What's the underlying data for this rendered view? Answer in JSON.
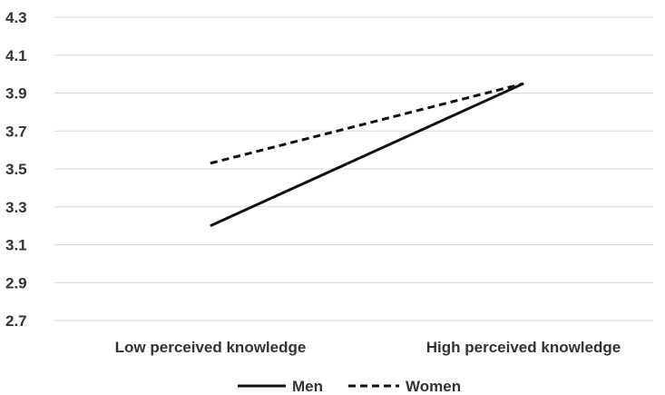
{
  "chart_data": {
    "type": "line",
    "categories": [
      "Low perceived knowledge",
      "High perceived knowledge"
    ],
    "series": [
      {
        "name": "Men",
        "values": [
          3.2,
          3.95
        ],
        "color": "#111111",
        "line_style": "solid"
      },
      {
        "name": "Women",
        "values": [
          3.53,
          3.95
        ],
        "color": "#111111",
        "line_style": "dashed"
      }
    ],
    "ylim": [
      2.7,
      4.3
    ],
    "y_ticks": [
      "2.7",
      "2.9",
      "3.1",
      "3.3",
      "3.5",
      "3.7",
      "3.9",
      "4.1",
      "4.3"
    ],
    "grid": "horizontal",
    "legend_position": "bottom",
    "title": "",
    "xlabel": "",
    "ylabel": ""
  }
}
